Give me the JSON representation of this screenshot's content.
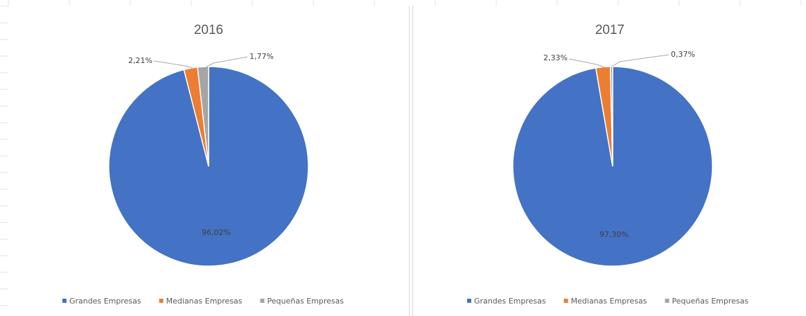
{
  "colors": {
    "grandes": "#4472c4",
    "medianas": "#ed7d31",
    "pequenas": "#a5a5a5",
    "leader": "#a6a6a6"
  },
  "chart_data": [
    {
      "type": "pie",
      "title": "2016",
      "series": [
        {
          "name": "Grandes Empresas",
          "label": "96,02%",
          "value": 96.02,
          "color": "#4472c4"
        },
        {
          "name": "Medianas Empresas",
          "label": "2,21%",
          "value": 2.21,
          "color": "#ed7d31"
        },
        {
          "name": "Pequeñas Empresas",
          "label": "1,77%",
          "value": 1.77,
          "color": "#a5a5a5"
        }
      ],
      "legend": "bottom"
    },
    {
      "type": "pie",
      "title": "2017",
      "series": [
        {
          "name": "Grandes Empresas",
          "label": "97,30%",
          "value": 97.3,
          "color": "#4472c4"
        },
        {
          "name": "Medianas Empresas",
          "label": "2,33%",
          "value": 2.33,
          "color": "#ed7d31"
        },
        {
          "name": "Pequeñas Empresas",
          "label": "0,37%",
          "value": 0.37,
          "color": "#a5a5a5"
        }
      ],
      "legend": "bottom"
    }
  ]
}
